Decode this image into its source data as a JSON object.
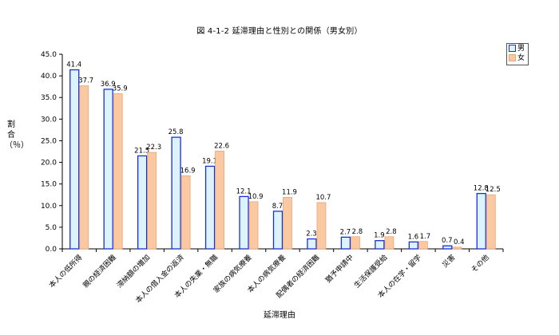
{
  "title": "図 4-1-2 延滞理由と性別との関係（男女別）",
  "chart_data": {
    "type": "bar",
    "title": "図 4-1-2 延滞理由と性別との関係（男女別）",
    "xlabel": "延滞理由",
    "ylabel": "割合（％）",
    "ylim": [
      0,
      45
    ],
    "yticks": [
      "0.0",
      "5.0",
      "10.0",
      "15.0",
      "20.0",
      "25.0",
      "30.0",
      "35.0",
      "40.0",
      "45.0"
    ],
    "grid": false,
    "legend_position": "top-right",
    "categories": [
      "本人の低所得",
      "親の経済困難",
      "滞納額の増加",
      "本人の借入金の返済",
      "本人の失業・無職",
      "家族の病気療養",
      "本人の病気療養",
      "配偶者の経済困難",
      "猶予申請中",
      "生活保護受給",
      "本人の在学・留学",
      "災害",
      "その他"
    ],
    "series": [
      {
        "name": "男",
        "color": "#dcf3fc",
        "stroke": "#1a2fd6",
        "values": [
          41.4,
          36.9,
          21.5,
          25.8,
          19.1,
          12.1,
          8.7,
          2.3,
          2.7,
          1.9,
          1.6,
          0.7,
          12.8
        ],
        "labels": [
          "41.4",
          "36.9",
          "21.5",
          "25.8",
          "19.1",
          "12.1",
          "8.7",
          "2.3",
          "2.7",
          "1.9",
          "1.6",
          "0.7",
          "12.8"
        ]
      },
      {
        "name": "女",
        "color": "#fac9a2",
        "stroke": "#e8a57a",
        "values": [
          37.7,
          35.9,
          22.3,
          16.9,
          22.6,
          10.9,
          11.9,
          10.7,
          2.8,
          2.8,
          1.7,
          0.4,
          12.5
        ],
        "labels": [
          "37.7",
          "35.9",
          "22.3",
          "16.9",
          "22.6",
          "10.9",
          "11.9",
          "10.7",
          "2.8",
          "2.8",
          "1.7",
          "0.4",
          "12.5"
        ]
      }
    ]
  }
}
